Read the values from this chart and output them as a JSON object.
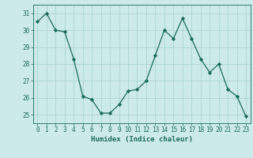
{
  "x": [
    0,
    1,
    2,
    3,
    4,
    5,
    6,
    7,
    8,
    9,
    10,
    11,
    12,
    13,
    14,
    15,
    16,
    17,
    18,
    19,
    20,
    21,
    22,
    23
  ],
  "y": [
    30.5,
    31.0,
    30.0,
    29.9,
    28.3,
    26.1,
    25.9,
    25.1,
    25.1,
    25.6,
    26.4,
    26.5,
    27.0,
    28.5,
    30.0,
    29.5,
    30.7,
    29.5,
    28.3,
    27.5,
    28.0,
    26.5,
    26.1,
    24.9
  ],
  "line_color": "#1a6b5a",
  "marker": "D",
  "marker_size": 2.2,
  "bg_color": "#cceaea",
  "grid_color": "#aad4d4",
  "xlabel": "Humidex (Indice chaleur)",
  "ylim": [
    24.5,
    31.5
  ],
  "xlim": [
    -0.5,
    23.5
  ],
  "yticks": [
    25,
    26,
    27,
    28,
    29,
    30,
    31
  ],
  "xticks": [
    0,
    1,
    2,
    3,
    4,
    5,
    6,
    7,
    8,
    9,
    10,
    11,
    12,
    13,
    14,
    15,
    16,
    17,
    18,
    19,
    20,
    21,
    22,
    23
  ],
  "tick_color": "#1a6b5a",
  "label_fontsize": 6.5,
  "tick_fontsize": 5.5
}
